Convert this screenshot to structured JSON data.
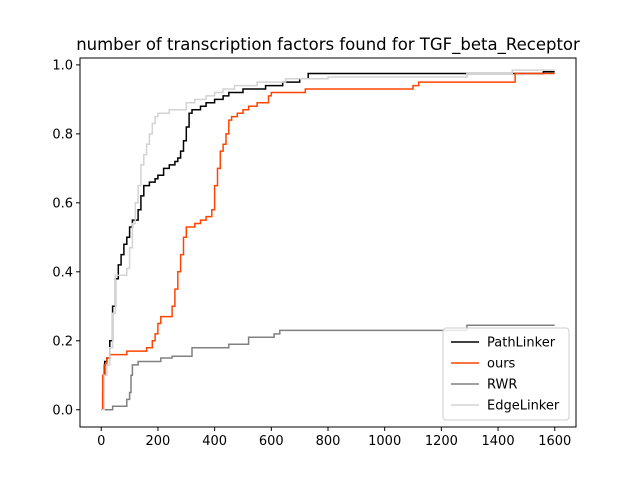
{
  "chart_data": {
    "type": "line",
    "title": "number of transcription factors found for TGF_beta_Receptor",
    "xlabel": "",
    "ylabel": "",
    "xlim": [
      -75,
      1675
    ],
    "ylim": [
      -0.05,
      1.02
    ],
    "xticks": [
      0,
      200,
      400,
      600,
      800,
      1000,
      1200,
      1400,
      1600
    ],
    "yticks": [
      0.0,
      0.2,
      0.4,
      0.6,
      0.8,
      1.0
    ],
    "xtick_labels": [
      "0",
      "200",
      "400",
      "600",
      "800",
      "1000",
      "1200",
      "1400",
      "1600"
    ],
    "ytick_labels": [
      "0.0",
      "0.2",
      "0.4",
      "0.6",
      "0.8",
      "1.0"
    ],
    "grid": false,
    "legend_position": "bottom-right",
    "step": true,
    "series": [
      {
        "name": "PathLinker",
        "color": "#000000",
        "points": [
          [
            0,
            0
          ],
          [
            5,
            0.05
          ],
          [
            8,
            0.1
          ],
          [
            12,
            0.14
          ],
          [
            20,
            0.15
          ],
          [
            30,
            0.2
          ],
          [
            40,
            0.3
          ],
          [
            50,
            0.38
          ],
          [
            60,
            0.42
          ],
          [
            70,
            0.45
          ],
          [
            80,
            0.48
          ],
          [
            90,
            0.5
          ],
          [
            100,
            0.53
          ],
          [
            110,
            0.55
          ],
          [
            130,
            0.58
          ],
          [
            140,
            0.62
          ],
          [
            150,
            0.65
          ],
          [
            170,
            0.66
          ],
          [
            190,
            0.67
          ],
          [
            200,
            0.68
          ],
          [
            220,
            0.7
          ],
          [
            240,
            0.71
          ],
          [
            260,
            0.72
          ],
          [
            270,
            0.73
          ],
          [
            280,
            0.75
          ],
          [
            290,
            0.78
          ],
          [
            300,
            0.82
          ],
          [
            310,
            0.86
          ],
          [
            320,
            0.87
          ],
          [
            350,
            0.88
          ],
          [
            370,
            0.89
          ],
          [
            400,
            0.9
          ],
          [
            430,
            0.91
          ],
          [
            450,
            0.92
          ],
          [
            500,
            0.93
          ],
          [
            580,
            0.94
          ],
          [
            640,
            0.95
          ],
          [
            700,
            0.96
          ],
          [
            730,
            0.975
          ],
          [
            1280,
            0.975
          ],
          [
            1560,
            0.98
          ],
          [
            1600,
            0.98
          ]
        ]
      },
      {
        "name": "ours",
        "color": "#ff4500",
        "points": [
          [
            0,
            0
          ],
          [
            5,
            0.1
          ],
          [
            10,
            0.13
          ],
          [
            20,
            0.15
          ],
          [
            30,
            0.16
          ],
          [
            80,
            0.16
          ],
          [
            90,
            0.17
          ],
          [
            150,
            0.17
          ],
          [
            160,
            0.18
          ],
          [
            180,
            0.2
          ],
          [
            190,
            0.22
          ],
          [
            200,
            0.25
          ],
          [
            210,
            0.27
          ],
          [
            240,
            0.27
          ],
          [
            250,
            0.3
          ],
          [
            260,
            0.35
          ],
          [
            270,
            0.4
          ],
          [
            280,
            0.45
          ],
          [
            290,
            0.5
          ],
          [
            300,
            0.53
          ],
          [
            330,
            0.54
          ],
          [
            350,
            0.55
          ],
          [
            370,
            0.56
          ],
          [
            390,
            0.58
          ],
          [
            400,
            0.65
          ],
          [
            410,
            0.7
          ],
          [
            420,
            0.75
          ],
          [
            430,
            0.77
          ],
          [
            440,
            0.8
          ],
          [
            450,
            0.84
          ],
          [
            460,
            0.85
          ],
          [
            480,
            0.86
          ],
          [
            500,
            0.87
          ],
          [
            520,
            0.88
          ],
          [
            550,
            0.89
          ],
          [
            590,
            0.91
          ],
          [
            600,
            0.92
          ],
          [
            700,
            0.92
          ],
          [
            720,
            0.93
          ],
          [
            1100,
            0.94
          ],
          [
            1120,
            0.95
          ],
          [
            1450,
            0.95
          ],
          [
            1460,
            0.975
          ],
          [
            1600,
            0.975
          ]
        ]
      },
      {
        "name": "RWR",
        "color": "#808080",
        "points": [
          [
            0,
            0
          ],
          [
            30,
            0
          ],
          [
            40,
            0.01
          ],
          [
            80,
            0.01
          ],
          [
            90,
            0.03
          ],
          [
            100,
            0.05
          ],
          [
            105,
            0.1
          ],
          [
            110,
            0.13
          ],
          [
            130,
            0.14
          ],
          [
            200,
            0.14
          ],
          [
            210,
            0.15
          ],
          [
            250,
            0.155
          ],
          [
            300,
            0.155
          ],
          [
            320,
            0.18
          ],
          [
            420,
            0.18
          ],
          [
            450,
            0.19
          ],
          [
            500,
            0.19
          ],
          [
            520,
            0.21
          ],
          [
            600,
            0.21
          ],
          [
            610,
            0.22
          ],
          [
            630,
            0.23
          ],
          [
            1280,
            0.23
          ],
          [
            1290,
            0.245
          ],
          [
            1600,
            0.245
          ]
        ]
      },
      {
        "name": "EdgeLinker",
        "color": "#d3d3d3",
        "points": [
          [
            0,
            0
          ],
          [
            10,
            0.1
          ],
          [
            20,
            0.13
          ],
          [
            30,
            0.18
          ],
          [
            40,
            0.28
          ],
          [
            50,
            0.39
          ],
          [
            60,
            0.39
          ],
          [
            80,
            0.39
          ],
          [
            90,
            0.41
          ],
          [
            100,
            0.47
          ],
          [
            110,
            0.54
          ],
          [
            120,
            0.6
          ],
          [
            130,
            0.65
          ],
          [
            140,
            0.71
          ],
          [
            150,
            0.74
          ],
          [
            160,
            0.77
          ],
          [
            170,
            0.8
          ],
          [
            180,
            0.83
          ],
          [
            190,
            0.85
          ],
          [
            200,
            0.86
          ],
          [
            240,
            0.87
          ],
          [
            260,
            0.87
          ],
          [
            300,
            0.89
          ],
          [
            330,
            0.9
          ],
          [
            370,
            0.91
          ],
          [
            400,
            0.92
          ],
          [
            430,
            0.93
          ],
          [
            470,
            0.94
          ],
          [
            550,
            0.95
          ],
          [
            650,
            0.96
          ],
          [
            780,
            0.96
          ],
          [
            800,
            0.965
          ],
          [
            1290,
            0.975
          ],
          [
            1450,
            0.985
          ],
          [
            1600,
            0.985
          ]
        ]
      }
    ]
  }
}
